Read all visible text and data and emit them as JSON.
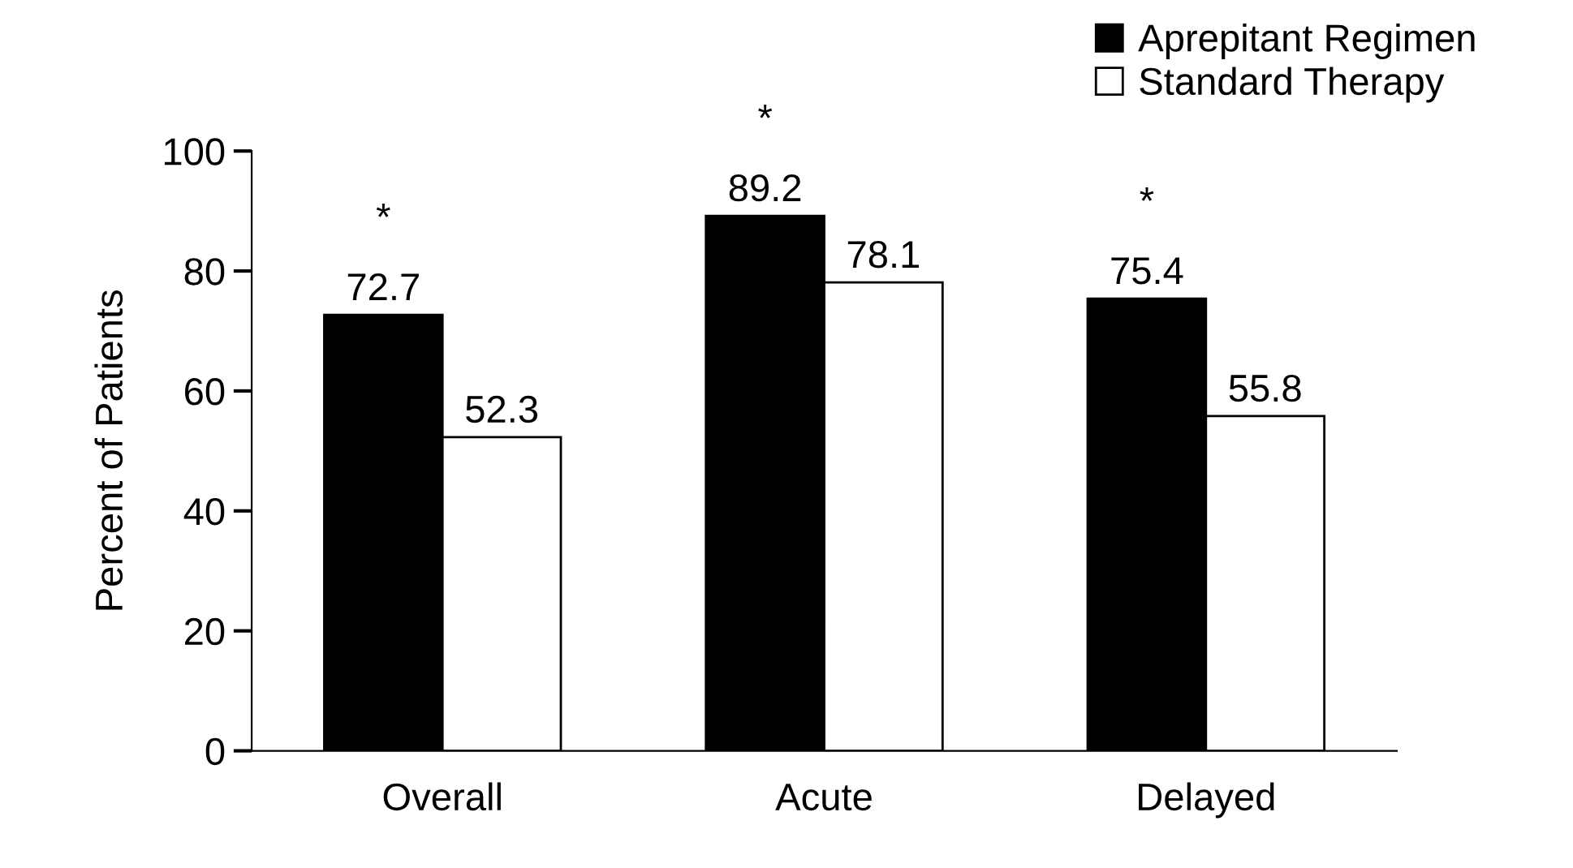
{
  "chart_data": {
    "type": "bar",
    "ylabel": "Percent of Patients",
    "categories": [
      "Overall",
      "Acute",
      "Delayed"
    ],
    "series": [
      {
        "name": "Aprepitant Regimen",
        "color": "#000000",
        "values": [
          72.7,
          89.2,
          75.4
        ]
      },
      {
        "name": "Standard Therapy",
        "color": "#ffffff",
        "values": [
          52.3,
          78.1,
          55.8
        ]
      }
    ],
    "ylim": [
      0,
      100
    ],
    "yticks": [
      0,
      20,
      40,
      60,
      80,
      100
    ],
    "data_labels": true,
    "legend": "top right",
    "grid": false,
    "annotations": [
      "*",
      "*",
      "*"
    ]
  }
}
